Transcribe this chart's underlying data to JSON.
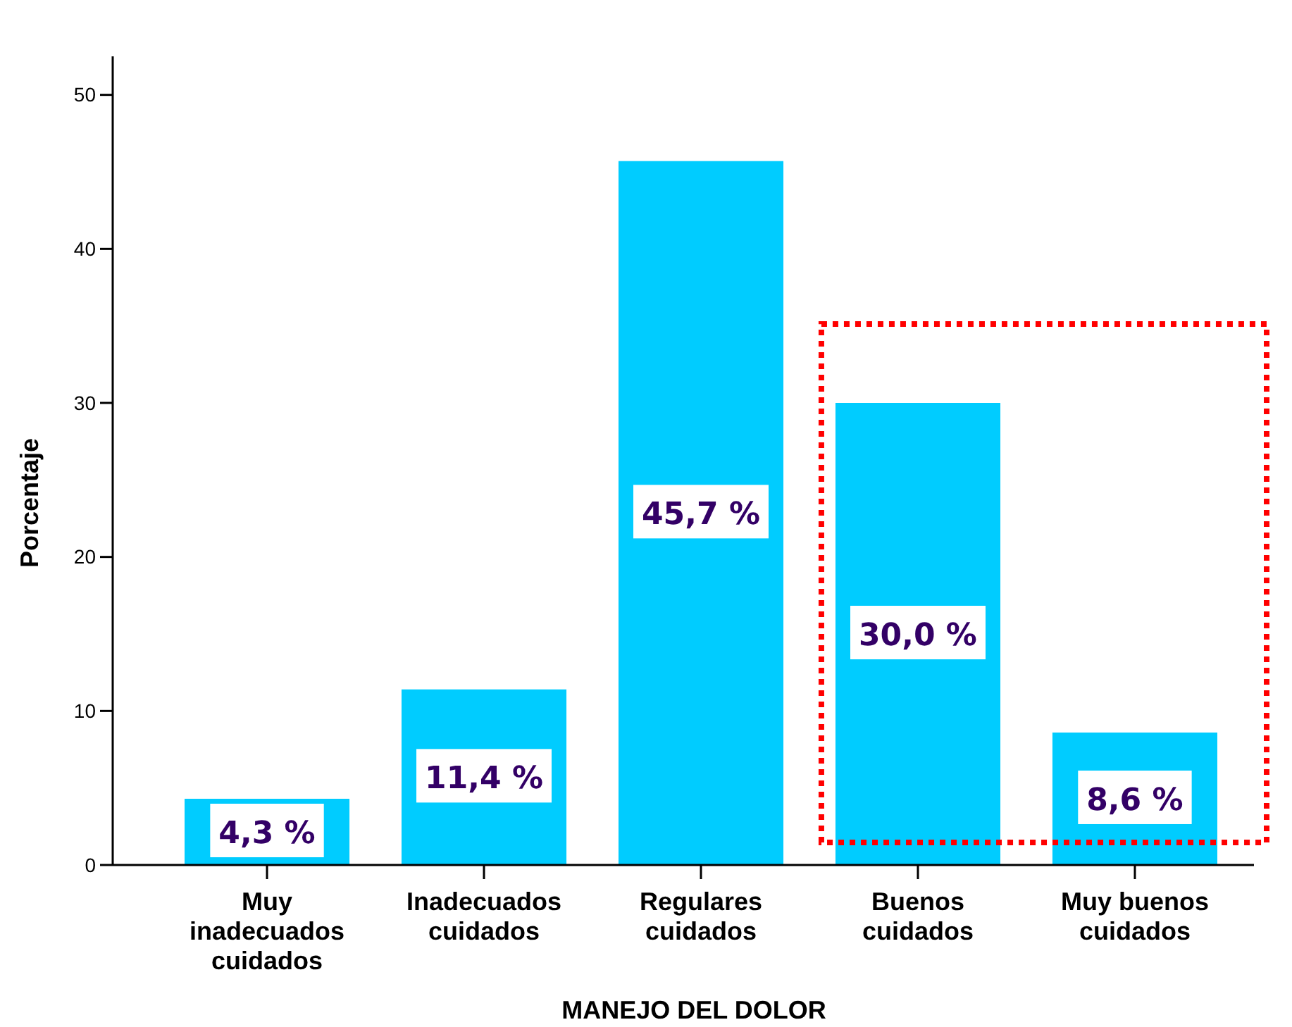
{
  "chart_data": {
    "type": "bar",
    "xlabel": "MANEJO DEL DOLOR",
    "ylabel": "Porcentaje",
    "categories": [
      "Muy inadecuados cuidados",
      "Inadecuados cuidados",
      "Regulares cuidados",
      "Buenos cuidados",
      "Muy buenos cuidados"
    ],
    "values": [
      4.3,
      11.4,
      45.7,
      30.0,
      8.6
    ],
    "color": "#00ccff",
    "value_labels": [
      "4,3 %",
      "11,4 %",
      "45,7 %",
      "30,0 %",
      "8,6 %"
    ],
    "ylim": [
      0,
      52.5
    ],
    "yticks": [
      0,
      10,
      20,
      30,
      40,
      50
    ]
  }
}
